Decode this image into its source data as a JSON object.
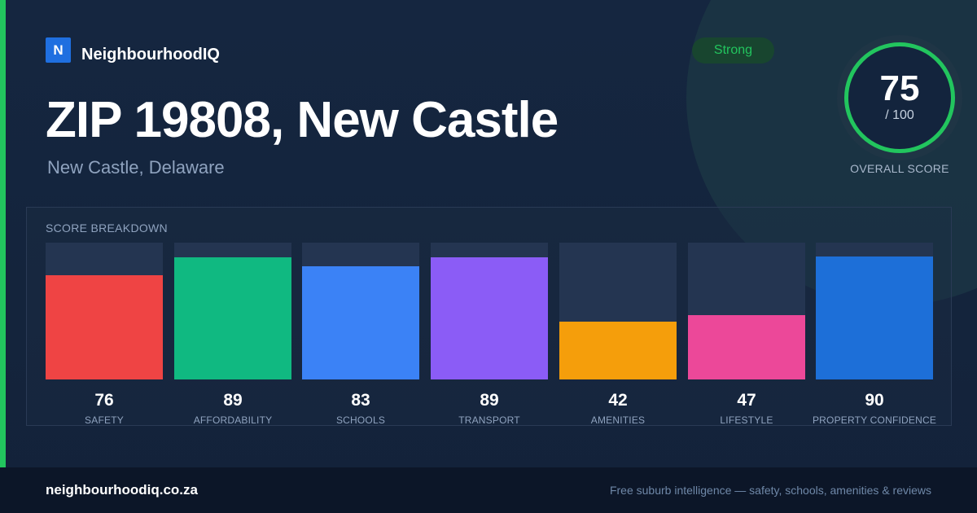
{
  "brand": {
    "logo_letter": "N",
    "name": "NeighbourhoodIQ"
  },
  "badge": "Strong",
  "header": {
    "title": "ZIP 19808, New Castle",
    "subtitle": "New Castle, Delaware"
  },
  "overall": {
    "score": "75",
    "out_of": "/ 100",
    "label": "OVERALL SCORE"
  },
  "breakdown": {
    "title": "SCORE BREAKDOWN"
  },
  "chart_data": {
    "type": "bar",
    "title": "SCORE BREAKDOWN",
    "categories": [
      "SAFETY",
      "AFFORDABILITY",
      "SCHOOLS",
      "TRANSPORT",
      "AMENITIES",
      "LIFESTYLE",
      "PROPERTY CONFIDENCE"
    ],
    "values": [
      76,
      89,
      83,
      89,
      42,
      47,
      90
    ],
    "colors": [
      "#ef4444",
      "#10b981",
      "#3b82f6",
      "#8b5cf6",
      "#f59e0b",
      "#ec4899",
      "#1d6fd8"
    ],
    "ylim": [
      0,
      100
    ]
  },
  "footer": {
    "url": "neighbourhoodiq.co.za",
    "tagline": "Free suburb intelligence — safety, schools, amenities & reviews"
  },
  "colors": {
    "accent": "#22c55e",
    "brand": "#1f6fe0",
    "background": "#13233d"
  }
}
